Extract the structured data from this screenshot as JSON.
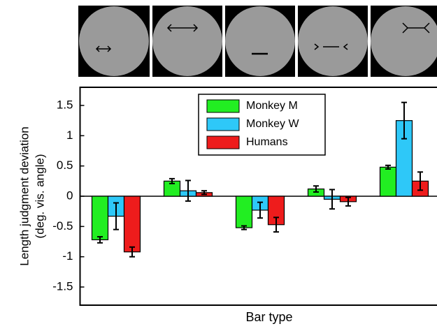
{
  "chart_data": {
    "type": "bar",
    "categories": [
      null,
      null,
      null,
      null,
      null
    ],
    "series": [
      {
        "name": "Monkey M",
        "color": "#22ee22",
        "values": [
          -0.72,
          0.25,
          -0.52,
          0.12,
          0.48
        ],
        "errors": [
          0.05,
          0.04,
          0.03,
          0.05,
          0.03
        ]
      },
      {
        "name": "Monkey W",
        "color": "#2ec8f8",
        "values": [
          -0.33,
          0.09,
          -0.23,
          -0.05,
          1.25
        ],
        "errors": [
          0.22,
          0.17,
          0.13,
          0.16,
          0.3
        ]
      },
      {
        "name": "Humans",
        "color": "#ee1c1c",
        "values": [
          -0.92,
          0.06,
          -0.47,
          -0.09,
          0.25
        ],
        "errors": [
          0.08,
          0.03,
          0.12,
          0.07,
          0.15
        ]
      }
    ],
    "ylabel": [
      "Length judgment deviation",
      "(deg. vis. angle)"
    ],
    "xlabel": "Bar type",
    "ylim": [
      -1.8,
      1.8
    ],
    "yticks": [
      1.5,
      1,
      0.5,
      0,
      -0.5,
      -1,
      -1.5
    ]
  }
}
